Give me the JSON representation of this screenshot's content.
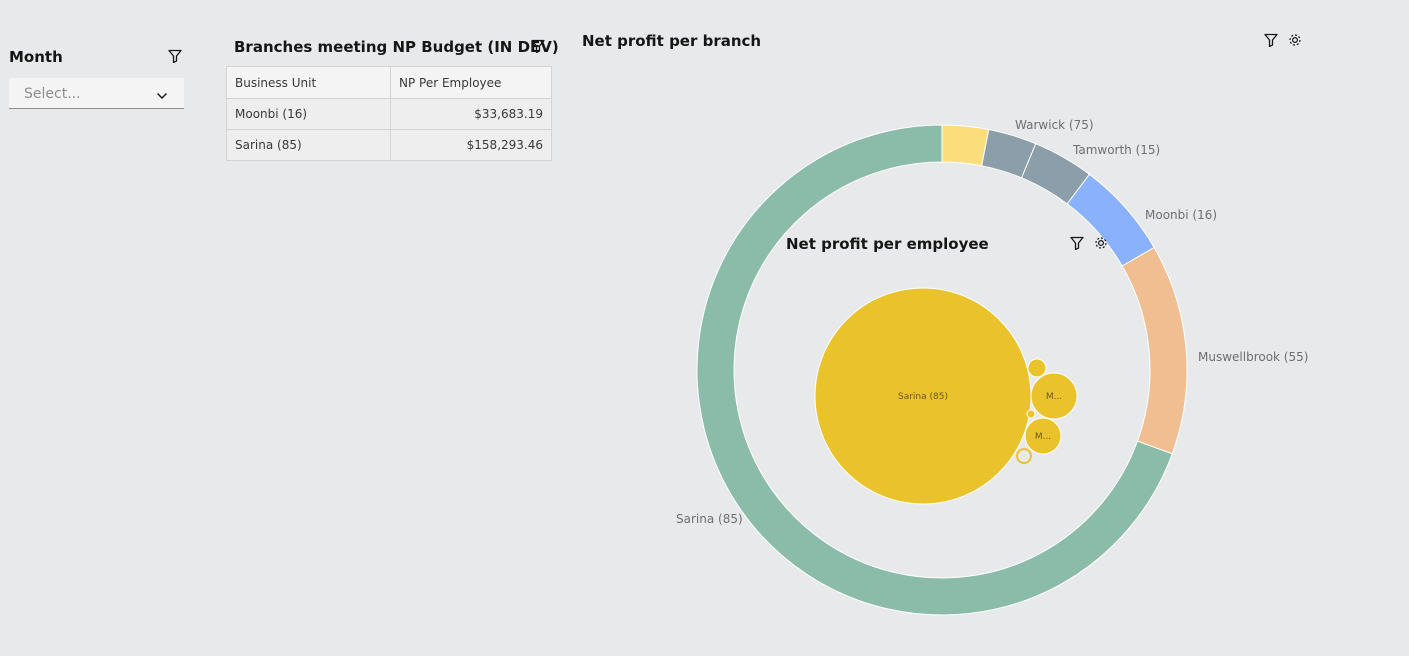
{
  "month_filter": {
    "title": "Month",
    "placeholder": "Select..."
  },
  "budget_table": {
    "title": "Branches meeting NP Budget (IN DEV)",
    "columns": [
      "Business Unit",
      "NP Per Employee"
    ],
    "rows": [
      {
        "unit": "Moonbi (16)",
        "np": "$33,683.19"
      },
      {
        "unit": "Sarina (85)",
        "np": "$158,293.46"
      }
    ]
  },
  "branch_chart": {
    "title": "Net profit per branch",
    "chart_data": {
      "type": "pie",
      "segments": [
        {
          "label": "",
          "color": "#fbde7b"
        },
        {
          "label": "Warwick (75)",
          "color": "#8c9ea9"
        },
        {
          "label": "Tamworth (15)",
          "color": "#8c9ea9"
        },
        {
          "label": "Moonbi (16)",
          "color": "#8ab1fb"
        },
        {
          "label": "Muswellbrook (55)",
          "color": "#f1be92"
        },
        {
          "label": "Sarina (85)",
          "color": "#8abca9"
        }
      ]
    }
  },
  "employee_chart": {
    "title": "Net profit per employee",
    "bubbles": [
      {
        "label": "Sarina (85)"
      },
      {
        "label": "M..."
      },
      {
        "label": "M..."
      }
    ],
    "bubble_color": "#eac32c"
  }
}
